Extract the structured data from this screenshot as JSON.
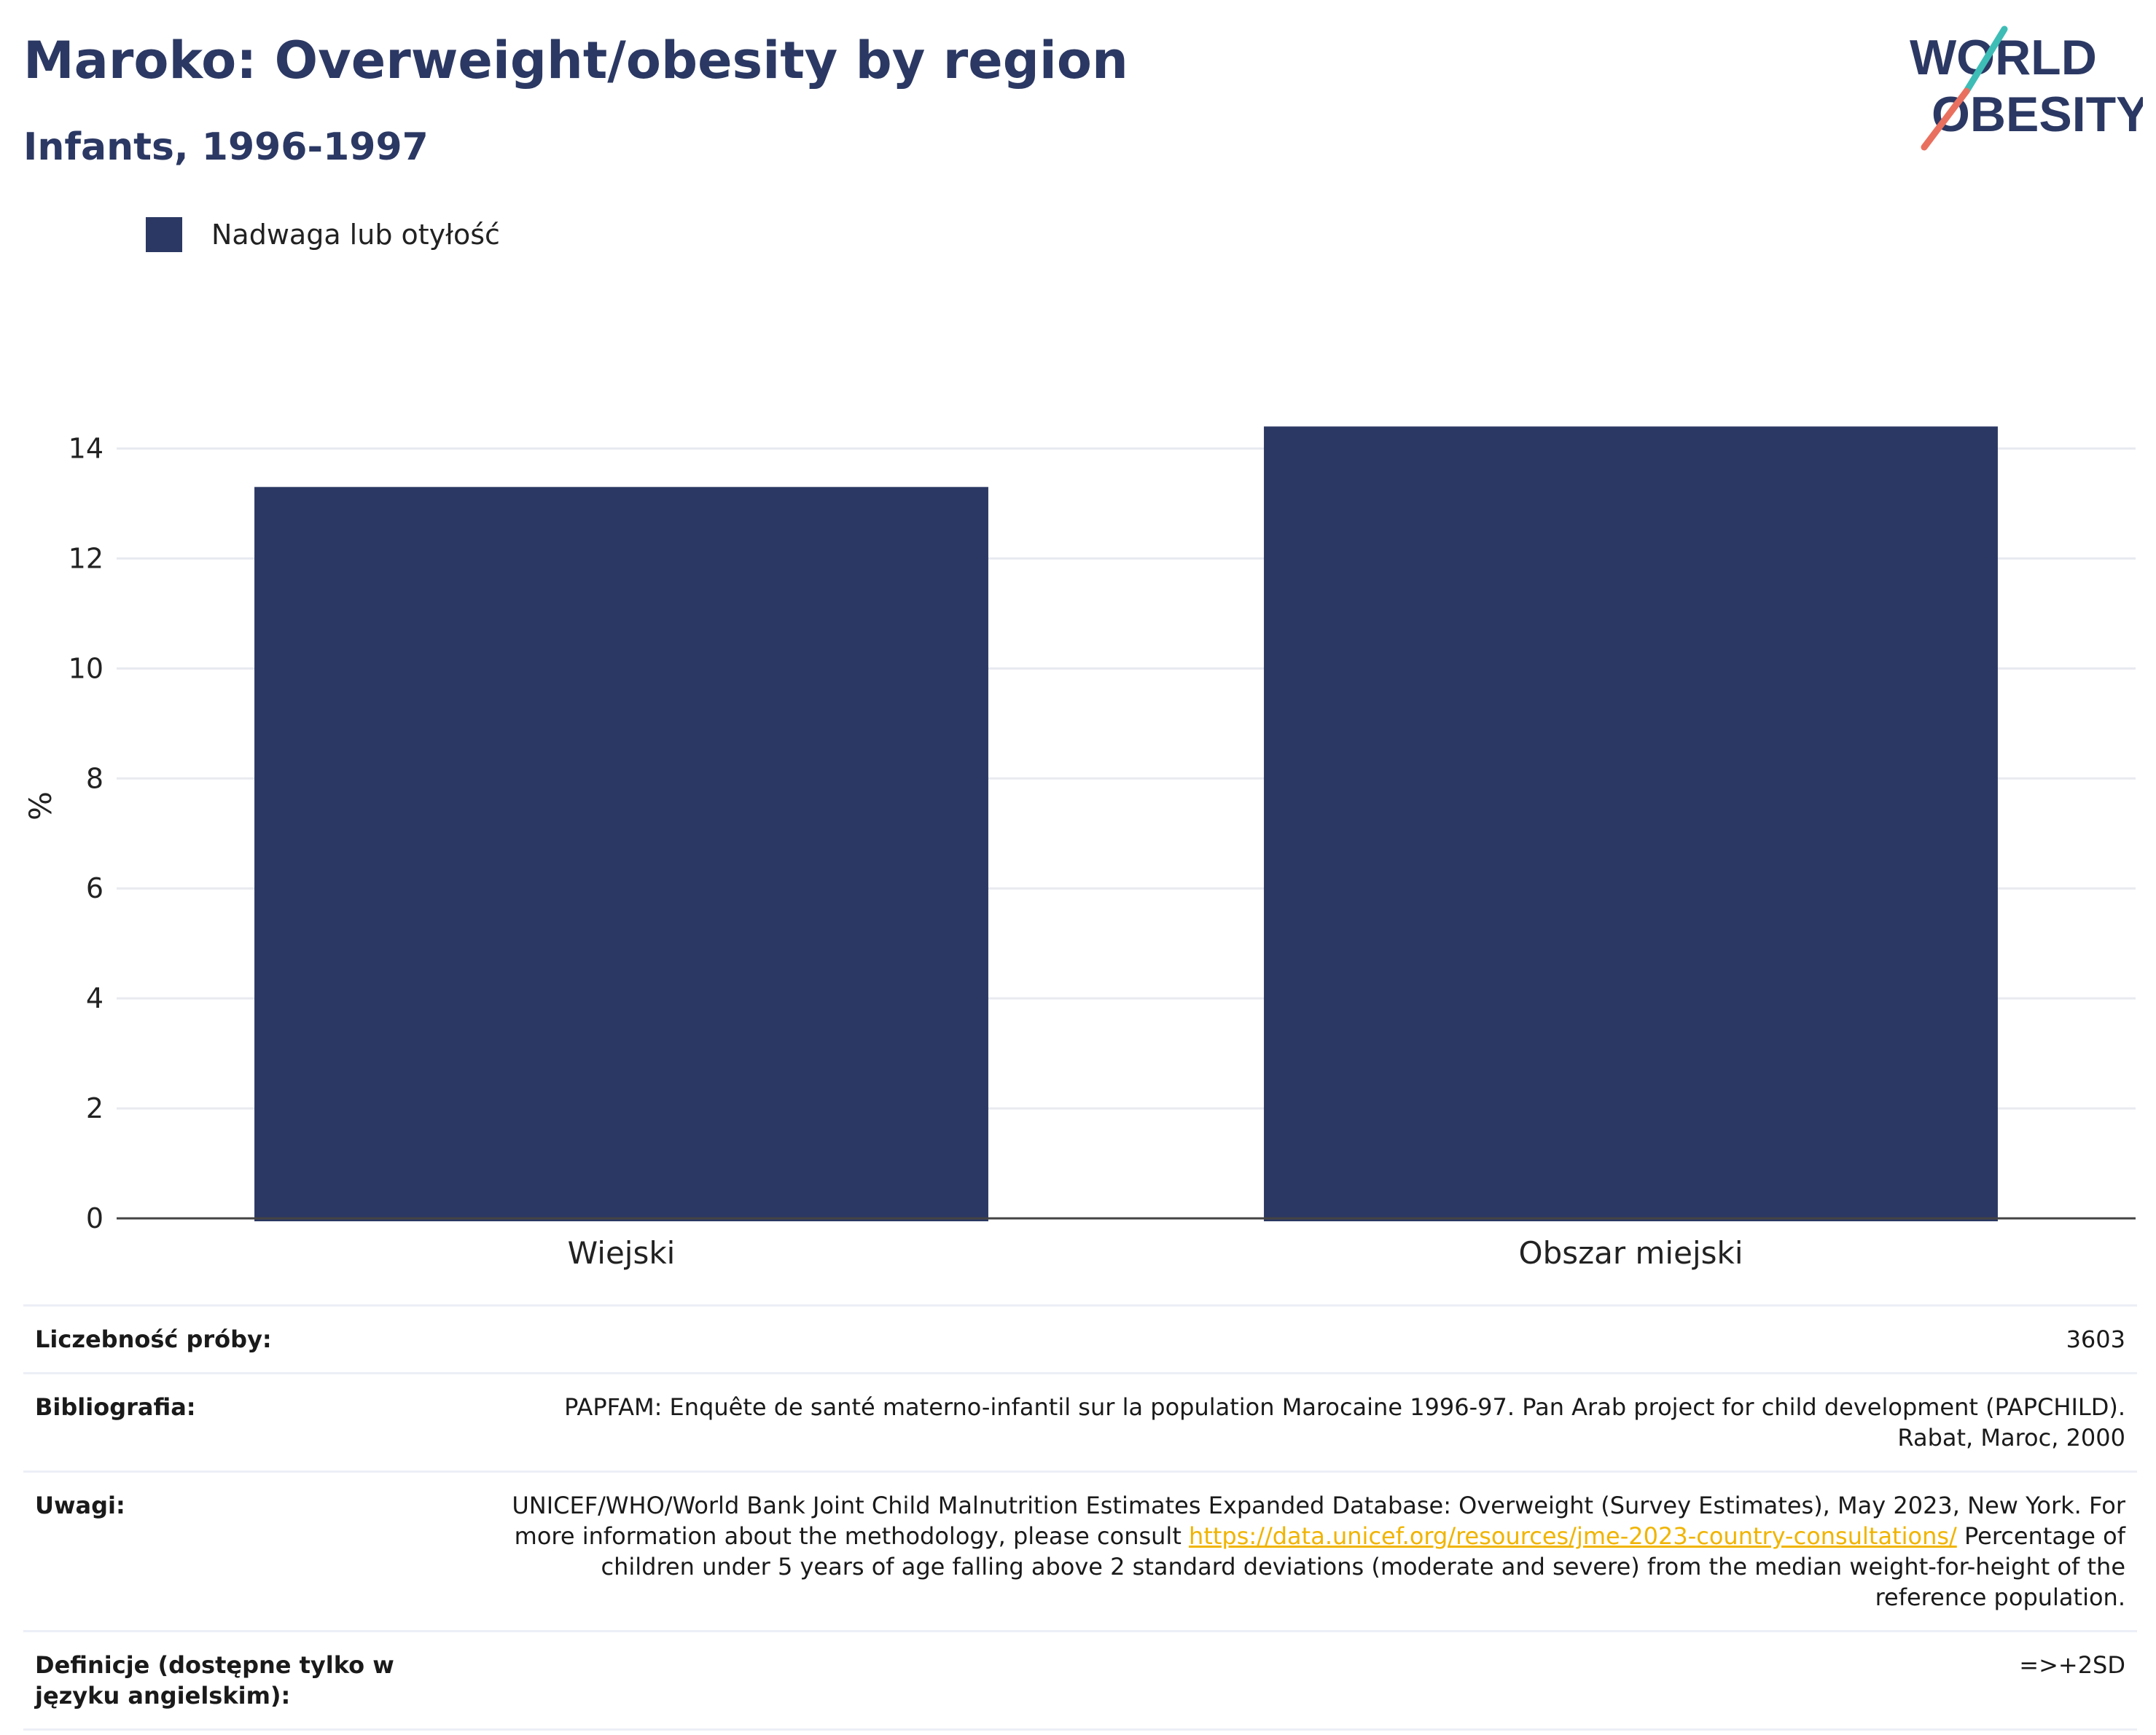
{
  "header": {
    "title": "Maroko: Overweight/obesity by region",
    "subtitle": "Infants, 1996-1997"
  },
  "logo": {
    "line1": "WORLD",
    "line2": "OBESITY",
    "colors": {
      "text": "#2b3863",
      "accent_top": "#3dbdb6",
      "accent_bottom": "#e9705f"
    }
  },
  "colors": {
    "bar": "#2b3863",
    "grid": "#e8eaf0",
    "axis": "#444444"
  },
  "chart_data": {
    "type": "bar",
    "categories": [
      "Wiejski",
      "Obszar miejski"
    ],
    "series": [
      {
        "name": "Nadwaga lub otyłość",
        "values": [
          13.3,
          14.4
        ]
      }
    ],
    "ylabel": "%",
    "xlabel": "",
    "ylim": [
      0,
      15
    ],
    "yticks": [
      0,
      2,
      4,
      6,
      8,
      10,
      12,
      14
    ],
    "grid": true,
    "legend": "top-left"
  },
  "info": {
    "sample_size_label": "Liczebność próby:",
    "sample_size_value": "3603",
    "bibliography_label": "Bibliografia:",
    "bibliography_value": "PAPFAM: Enquête de santé materno-infantil sur la population Marocaine 1996-97. Pan Arab project for child development (PAPCHILD). Rabat, Maroc, 2000",
    "notes_label": "Uwagi:",
    "notes_text_1": "UNICEF/WHO/World Bank Joint Child Malnutrition Estimates Expanded Database: Overweight (Survey Estimates), May 2023, New York. For more information about the methodology, please consult ",
    "notes_link": "https://data.unicef.org/resources/jme-2023-country-consultations/",
    "notes_text_2": " Percentage of children under 5 years of age falling above 2 standard deviations (moderate and severe) from the median weight-for-height of the reference population.",
    "definitions_label": "Definicje (dostępne tylko w języku angielskim):",
    "definitions_value": "=>+2SD"
  }
}
